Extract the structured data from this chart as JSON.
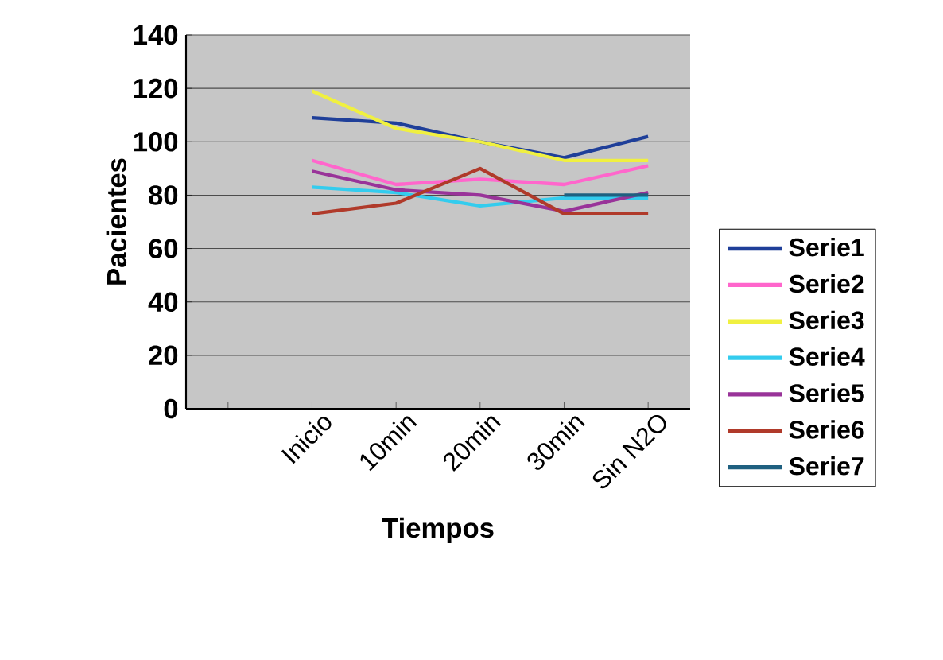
{
  "chart_data": {
    "type": "line",
    "xlabel": "Tiempos",
    "ylabel": "Pacientes",
    "categories": [
      null,
      "Inicio",
      "10min",
      "20min",
      "30min",
      "Sin N2O"
    ],
    "series": [
      {
        "name": "Serie1",
        "color": "#1f3f99",
        "values": [
          null,
          109,
          107,
          100,
          94,
          102
        ]
      },
      {
        "name": "Serie2",
        "color": "#ff66cc",
        "values": [
          null,
          93,
          84,
          86,
          84,
          91
        ]
      },
      {
        "name": "Serie3",
        "color": "#f0f040",
        "values": [
          null,
          119,
          105,
          100,
          93,
          93
        ]
      },
      {
        "name": "Serie4",
        "color": "#33ccee",
        "values": [
          null,
          83,
          81,
          76,
          79,
          79
        ]
      },
      {
        "name": "Serie5",
        "color": "#993399",
        "values": [
          null,
          89,
          82,
          80,
          74,
          81
        ]
      },
      {
        "name": "Serie6",
        "color": "#b03a2a",
        "values": [
          null,
          73,
          77,
          90,
          73,
          73
        ]
      },
      {
        "name": "Serie7",
        "color": "#1f6080",
        "values": [
          null,
          null,
          null,
          null,
          80,
          80
        ]
      }
    ],
    "ylim": [
      0,
      140
    ],
    "yticks": [
      0,
      20,
      40,
      60,
      80,
      100,
      120,
      140
    ],
    "grid": "y",
    "legend": "right",
    "marker": "none",
    "line_style": "solid"
  }
}
